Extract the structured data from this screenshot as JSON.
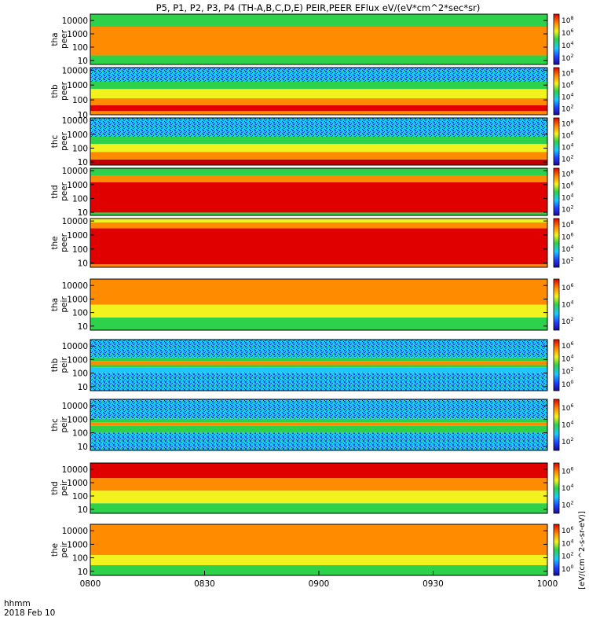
{
  "chart_data": {
    "type": "heatmap",
    "title": "P5, P1, P2, P3, P4 (TH-A,B,C,D,E) PEIR,PEER EFlux eV/(eV*cm^2*sec*sr)",
    "x_axis": {
      "label_line1": "hhmm",
      "label_line2": "2018 Feb 10",
      "range": [
        0,
        120
      ],
      "ticks": [
        {
          "v": 0,
          "label": "0800"
        },
        {
          "v": 30,
          "label": "0830"
        },
        {
          "v": 60,
          "label": "0900"
        },
        {
          "v": 90,
          "label": "0930"
        },
        {
          "v": 120,
          "label": "1000"
        }
      ]
    },
    "y_scale": "log",
    "colorbar_label": "[eV/(cm^2-s-sr-eV)]",
    "panels": [
      {
        "probe": "tha",
        "species": "peer",
        "ylim": [
          5,
          30000
        ],
        "yticks": [
          10,
          100,
          1000,
          10000
        ],
        "colorbar_ticks": [
          "10^2",
          "10^4",
          "10^6",
          "10^8"
        ]
      },
      {
        "probe": "thb",
        "species": "peer",
        "ylim": [
          10,
          15000
        ],
        "yticks": [
          10,
          100,
          1000,
          10000
        ],
        "colorbar_ticks": [
          "10^2",
          "10^4",
          "10^6",
          "10^8"
        ]
      },
      {
        "probe": "thc",
        "species": "peer",
        "ylim": [
          6,
          15000
        ],
        "yticks": [
          10,
          100,
          1000,
          10000
        ],
        "colorbar_ticks": [
          "10^2",
          "10^4",
          "10^6",
          "10^8"
        ]
      },
      {
        "probe": "thd",
        "species": "peer",
        "ylim": [
          6,
          15000
        ],
        "yticks": [
          10,
          100,
          1000,
          10000
        ],
        "colorbar_ticks": [
          "10^2",
          "10^4",
          "10^6",
          "10^8"
        ]
      },
      {
        "probe": "the",
        "species": "peer",
        "ylim": [
          5,
          15000
        ],
        "yticks": [
          10,
          100,
          1000,
          10000
        ],
        "colorbar_ticks": [
          "10^2",
          "10^4",
          "10^6",
          "10^8"
        ]
      },
      {
        "probe": "tha",
        "species": "peir",
        "ylim": [
          5,
          30000
        ],
        "yticks": [
          10,
          100,
          1000,
          10000
        ],
        "colorbar_ticks": [
          "10^2",
          "10^4",
          "10^6"
        ]
      },
      {
        "probe": "thb",
        "species": "peir",
        "ylim": [
          5,
          30000
        ],
        "yticks": [
          10,
          100,
          1000,
          10000
        ],
        "colorbar_ticks": [
          "10^0",
          "10^2",
          "10^4",
          "10^6"
        ]
      },
      {
        "probe": "thc",
        "species": "peir",
        "ylim": [
          5,
          30000
        ],
        "yticks": [
          10,
          100,
          1000,
          10000
        ],
        "colorbar_ticks": [
          "10^2",
          "10^4",
          "10^6"
        ]
      },
      {
        "probe": "thd",
        "species": "peir",
        "ylim": [
          5,
          30000
        ],
        "yticks": [
          10,
          100,
          1000,
          10000
        ],
        "colorbar_ticks": [
          "10^2",
          "10^4",
          "10^6"
        ]
      },
      {
        "probe": "the",
        "species": "peir",
        "ylim": [
          5,
          30000
        ],
        "yticks": [
          10,
          100,
          1000,
          10000
        ],
        "colorbar_ticks": [
          "10^0",
          "10^2",
          "10^4",
          "10^6"
        ]
      }
    ]
  }
}
